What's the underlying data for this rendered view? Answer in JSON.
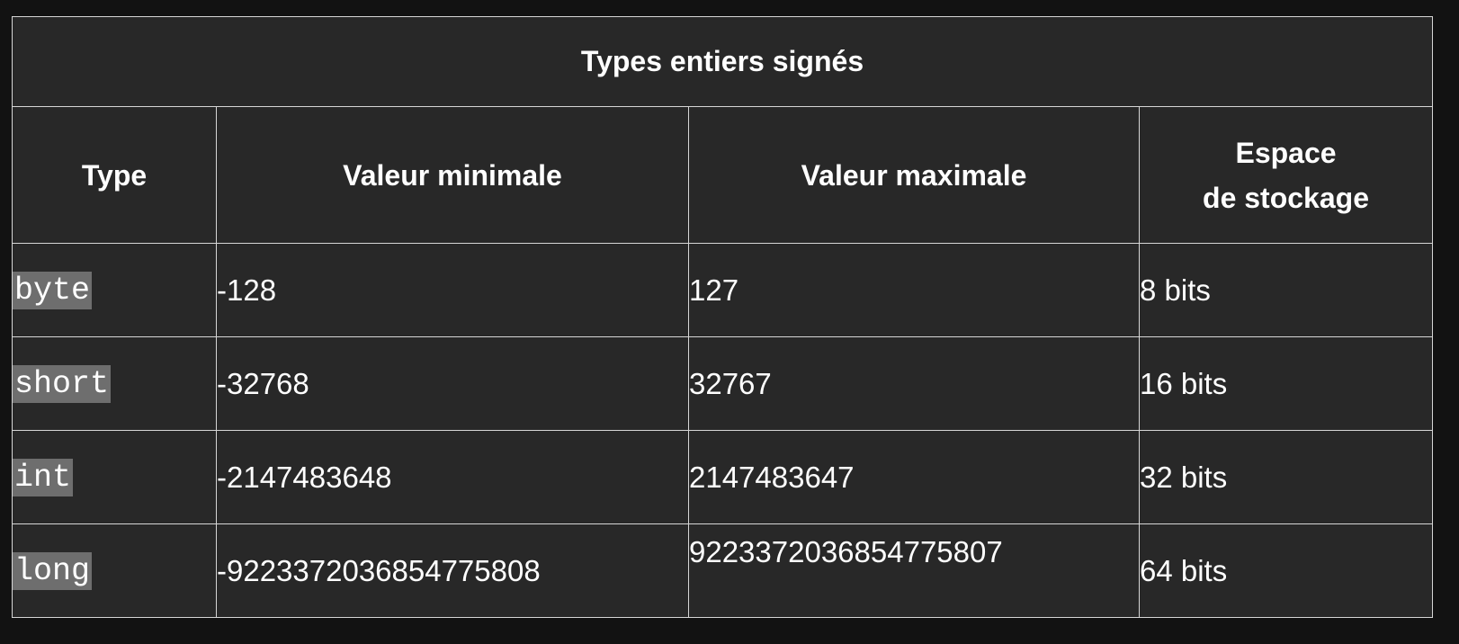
{
  "table": {
    "caption": "Types entiers signés",
    "headers": {
      "type": "Type",
      "min": "Valeur minimale",
      "max": "Valeur maximale",
      "storage_line1": "Espace",
      "storage_line2": "de stockage"
    },
    "rows": [
      {
        "type": "byte",
        "min": "-128",
        "max": "127",
        "storage": "8 bits"
      },
      {
        "type": "short",
        "min": "-32768",
        "max": "32767",
        "storage": "16 bits"
      },
      {
        "type": "int",
        "min": "-2147483648",
        "max": "2147483647",
        "storage": "32 bits"
      },
      {
        "type": "long",
        "min": "-9223372036854775808",
        "max": "9223372036854775807",
        "storage": "64 bits"
      }
    ]
  },
  "colors": {
    "page_background": "#121212",
    "table_background": "#282828",
    "code_highlight": "#6e6e6e",
    "border": "#d6d6d6",
    "text": "#ffffff"
  }
}
